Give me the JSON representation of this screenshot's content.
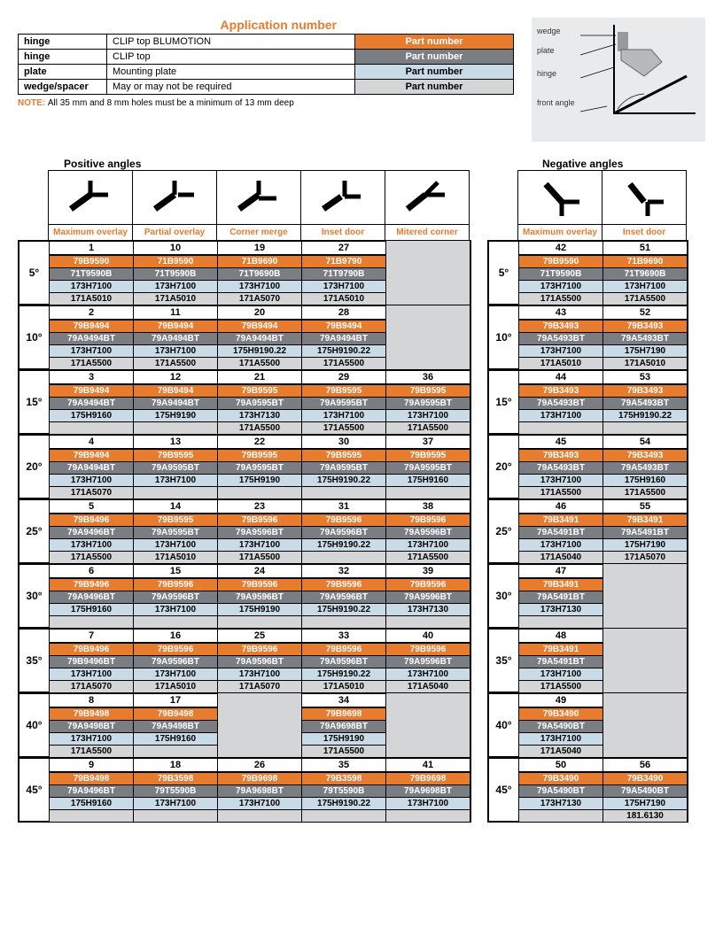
{
  "colors": {
    "orange": "#e77b2e",
    "grey": "#7a7d82",
    "blue": "#c9dbe6",
    "ltgrey": "#d4d5d7",
    "border": "#000000",
    "bg": "#ffffff",
    "diagram_bg": "#e9eaeb"
  },
  "typography": {
    "base_fontsize": 10,
    "title_fontsize": 14
  },
  "app_title": "Application number",
  "header_rows": [
    {
      "label": "hinge",
      "desc": "CLIP top BLUMOTION",
      "pn": "Part number",
      "style": "orange"
    },
    {
      "label": "hinge",
      "desc": "CLIP top",
      "pn": "Part number",
      "style": "grey"
    },
    {
      "label": "plate",
      "desc": "Mounting plate",
      "pn": "Part number",
      "style": "blue"
    },
    {
      "label": "wedge/spacer",
      "desc": "May or may not be required",
      "pn": "Part number",
      "style": "ltgrey"
    }
  ],
  "note_prefix": "NOTE: ",
  "note_text": "All 35 mm and 8 mm holes must be a minimum of 13 mm deep",
  "diagram_labels": [
    "wedge",
    "plate",
    "hinge",
    "front angle"
  ],
  "section_positive": "Positive angles",
  "section_negative": "Negative angles",
  "positive_cols": [
    {
      "label": "Maximum overlay",
      "icon": "pos1"
    },
    {
      "label": "Partial overlay",
      "icon": "pos2"
    },
    {
      "label": "Corner merge",
      "icon": "pos3"
    },
    {
      "label": "Inset door",
      "icon": "pos4"
    },
    {
      "label": "Mitered corner",
      "icon": "pos5"
    }
  ],
  "negative_cols": [
    {
      "label": "Maximum overlay",
      "icon": "neg1"
    },
    {
      "label": "Inset door",
      "icon": "neg2"
    }
  ],
  "row_styles": [
    "orange",
    "grey",
    "blue",
    "ltgrey"
  ],
  "positive_blocks": [
    {
      "angle": "5°",
      "cols": [
        {
          "idx": "1",
          "p": [
            "79B9590",
            "71T9590B",
            "173H7100",
            "171A5010"
          ]
        },
        {
          "idx": "10",
          "p": [
            "71B9590",
            "71T9590B",
            "173H7100",
            "171A5010"
          ]
        },
        {
          "idx": "19",
          "p": [
            "71B9690",
            "71T9690B",
            "173H7100",
            "171A5070"
          ]
        },
        {
          "idx": "27",
          "p": [
            "71B9790",
            "71T9790B",
            "173H7100",
            "171A5010"
          ]
        },
        {
          "idx": "",
          "p": [
            "",
            "",
            "",
            ""
          ]
        }
      ]
    },
    {
      "angle": "10°",
      "cols": [
        {
          "idx": "2",
          "p": [
            "79B9494",
            "79A9494BT",
            "173H7100",
            "171A5500"
          ]
        },
        {
          "idx": "11",
          "p": [
            "79B9494",
            "79A9494BT",
            "173H7100",
            "171A5500"
          ]
        },
        {
          "idx": "20",
          "p": [
            "79B9494",
            "79A9494BT",
            "175H9190.22",
            "171A5500"
          ]
        },
        {
          "idx": "28",
          "p": [
            "79B9494",
            "79A9494BT",
            "175H9190.22",
            "171A5500"
          ]
        },
        {
          "idx": "",
          "p": [
            "",
            "",
            "",
            ""
          ]
        }
      ]
    },
    {
      "angle": "15°",
      "cols": [
        {
          "idx": "3",
          "p": [
            "79B9494",
            "79A9494BT",
            "175H9160",
            ""
          ]
        },
        {
          "idx": "12",
          "p": [
            "79B9494",
            "79A9494BT",
            "175H9190",
            ""
          ]
        },
        {
          "idx": "21",
          "p": [
            "79B9595",
            "79A9595BT",
            "173H7130",
            "171A5500"
          ]
        },
        {
          "idx": "29",
          "p": [
            "79B9595",
            "79A9595BT",
            "173H7100",
            "171A5500"
          ]
        },
        {
          "idx": "36",
          "p": [
            "79B9595",
            "79A9595BT",
            "173H7100",
            "171A5500"
          ]
        }
      ]
    },
    {
      "angle": "20°",
      "cols": [
        {
          "idx": "4",
          "p": [
            "79B9494",
            "79A9494BT",
            "173H7100",
            "171A5070"
          ]
        },
        {
          "idx": "13",
          "p": [
            "79B9595",
            "79A9595BT",
            "173H7100",
            ""
          ]
        },
        {
          "idx": "22",
          "p": [
            "79B9595",
            "79A9595BT",
            "175H9190",
            ""
          ]
        },
        {
          "idx": "30",
          "p": [
            "79B9595",
            "79A9595BT",
            "175H9190.22",
            ""
          ]
        },
        {
          "idx": "37",
          "p": [
            "79B9595",
            "79A9595BT",
            "175H9160",
            ""
          ]
        }
      ]
    },
    {
      "angle": "25°",
      "cols": [
        {
          "idx": "5",
          "p": [
            "79B9496",
            "79A9496BT",
            "173H7100",
            "171A5500"
          ]
        },
        {
          "idx": "14",
          "p": [
            "79B9595",
            "79A9595BT",
            "173H7100",
            "171A5010"
          ]
        },
        {
          "idx": "23",
          "p": [
            "79B9596",
            "79A9596BT",
            "173H7100",
            "171A5500"
          ]
        },
        {
          "idx": "31",
          "p": [
            "79B9596",
            "79A9596BT",
            "175H9190.22",
            ""
          ]
        },
        {
          "idx": "38",
          "p": [
            "79B9596",
            "79A9596BT",
            "173H7100",
            "171A5500"
          ]
        }
      ]
    },
    {
      "angle": "30°",
      "cols": [
        {
          "idx": "6",
          "p": [
            "79B9496",
            "79A9496BT",
            "175H9160",
            ""
          ]
        },
        {
          "idx": "15",
          "p": [
            "79B9596",
            "79A9596BT",
            "173H7100",
            ""
          ]
        },
        {
          "idx": "24",
          "p": [
            "79B9596",
            "79A9596BT",
            "175H9190",
            ""
          ]
        },
        {
          "idx": "32",
          "p": [
            "79B9596",
            "79A9596BT",
            "175H9190.22",
            ""
          ]
        },
        {
          "idx": "39",
          "p": [
            "79B9596",
            "79A9596BT",
            "173H7130",
            ""
          ]
        }
      ]
    },
    {
      "angle": "35°",
      "cols": [
        {
          "idx": "7",
          "p": [
            "79B9496",
            "79B9496BT",
            "173H7100",
            "171A5070"
          ]
        },
        {
          "idx": "16",
          "p": [
            "79B9596",
            "79A9596BT",
            "173H7100",
            "171A5010"
          ]
        },
        {
          "idx": "25",
          "p": [
            "79B9596",
            "79A9596BT",
            "173H7100",
            "171A5070"
          ]
        },
        {
          "idx": "33",
          "p": [
            "79B9596",
            "79A9596BT",
            "175H9190.22",
            "171A5010"
          ]
        },
        {
          "idx": "40",
          "p": [
            "79B9596",
            "79A9596BT",
            "173H7100",
            "171A5040"
          ]
        }
      ]
    },
    {
      "angle": "40°",
      "cols": [
        {
          "idx": "8",
          "p": [
            "79B9498",
            "79A9498BT",
            "173H7100",
            "171A5500"
          ]
        },
        {
          "idx": "17",
          "p": [
            "79B9498",
            "79A9498BT",
            "175H9160",
            ""
          ]
        },
        {
          "idx": "",
          "p": [
            "",
            "",
            "",
            ""
          ]
        },
        {
          "idx": "34",
          "p": [
            "79B9698",
            "79A9698BT",
            "175H9190",
            "171A5500"
          ]
        },
        {
          "idx": "",
          "p": [
            "",
            "",
            "",
            ""
          ]
        }
      ]
    },
    {
      "angle": "45°",
      "cols": [
        {
          "idx": "9",
          "p": [
            "79B9498",
            "79A9496BT",
            "175H9160",
            ""
          ]
        },
        {
          "idx": "18",
          "p": [
            "79B3598",
            "79T5590B",
            "173H7100",
            ""
          ]
        },
        {
          "idx": "26",
          "p": [
            "79B9698",
            "79A9698BT",
            "173H7100",
            ""
          ]
        },
        {
          "idx": "35",
          "p": [
            "79B3598",
            "79T5590B",
            "175H9190.22",
            ""
          ]
        },
        {
          "idx": "41",
          "p": [
            "79B9698",
            "79A9698BT",
            "173H7100",
            ""
          ]
        }
      ]
    }
  ],
  "negative_blocks": [
    {
      "angle": "5°",
      "cols": [
        {
          "idx": "42",
          "p": [
            "79B9590",
            "71T9590B",
            "173H7100",
            "171A5500"
          ]
        },
        {
          "idx": "51",
          "p": [
            "71B9690",
            "71T9690B",
            "173H7100",
            "171A5500"
          ]
        }
      ]
    },
    {
      "angle": "10°",
      "cols": [
        {
          "idx": "43",
          "p": [
            "79B3493",
            "79A5493BT",
            "173H7100",
            "171A5010"
          ]
        },
        {
          "idx": "52",
          "p": [
            "79B3493",
            "79A5493BT",
            "175H7190",
            "171A5010"
          ]
        }
      ]
    },
    {
      "angle": "15°",
      "cols": [
        {
          "idx": "44",
          "p": [
            "79B3493",
            "79A5493BT",
            "173H7100",
            ""
          ]
        },
        {
          "idx": "53",
          "p": [
            "79B3493",
            "79A5493BT",
            "175H9190.22",
            ""
          ]
        }
      ]
    },
    {
      "angle": "20°",
      "cols": [
        {
          "idx": "45",
          "p": [
            "79B3493",
            "79A5493BT",
            "173H7100",
            "171A5500"
          ]
        },
        {
          "idx": "54",
          "p": [
            "79B3493",
            "79A5493BT",
            "175H9160",
            "171A5500"
          ]
        }
      ]
    },
    {
      "angle": "25°",
      "cols": [
        {
          "idx": "46",
          "p": [
            "79B3491",
            "79A5491BT",
            "173H7100",
            "171A5040"
          ]
        },
        {
          "idx": "55",
          "p": [
            "79B3491",
            "79A5491BT",
            "175H7190",
            "171A5070"
          ]
        }
      ]
    },
    {
      "angle": "30°",
      "cols": [
        {
          "idx": "47",
          "p": [
            "79B3491",
            "79A5491BT",
            "173H7130",
            ""
          ]
        },
        {
          "idx": "",
          "p": [
            "",
            "",
            "",
            ""
          ]
        }
      ]
    },
    {
      "angle": "35°",
      "cols": [
        {
          "idx": "48",
          "p": [
            "79B3491",
            "79A5491BT",
            "173H7100",
            "171A5500"
          ]
        },
        {
          "idx": "",
          "p": [
            "",
            "",
            "",
            ""
          ]
        }
      ]
    },
    {
      "angle": "40°",
      "cols": [
        {
          "idx": "49",
          "p": [
            "79B3490",
            "79A5490BT",
            "173H7100",
            "171A5040"
          ]
        },
        {
          "idx": "",
          "p": [
            "",
            "",
            "",
            ""
          ]
        }
      ]
    },
    {
      "angle": "45°",
      "cols": [
        {
          "idx": "50",
          "p": [
            "79B3490",
            "79A5490BT",
            "173H7130",
            ""
          ]
        },
        {
          "idx": "56",
          "p": [
            "79B3490",
            "79A5490BT",
            "175H7190",
            "181.6130"
          ]
        }
      ]
    }
  ]
}
